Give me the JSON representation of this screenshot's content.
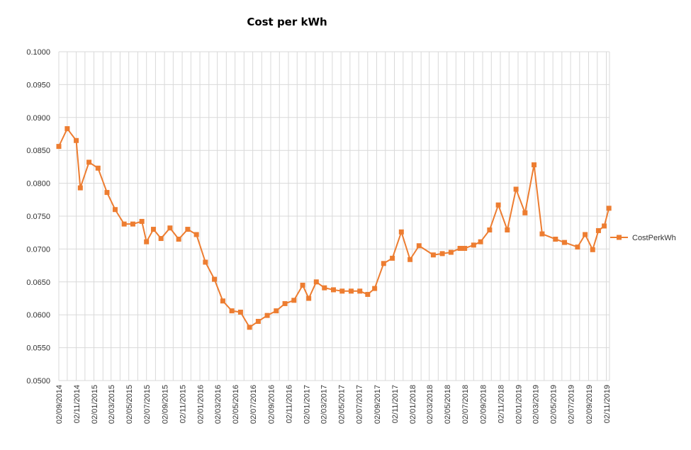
{
  "chart_data": {
    "type": "line",
    "title": "Cost per kWh",
    "xlabel": "",
    "ylabel": "",
    "ylim": [
      0.05,
      0.1
    ],
    "ytick_labels": [
      "0.0500",
      "0.0550",
      "0.0600",
      "0.0650",
      "0.0700",
      "0.0750",
      "0.0800",
      "0.0850",
      "0.0900",
      "0.0950",
      "0.1000"
    ],
    "xtick_labels": [
      "02/09/2014",
      "02/11/2014",
      "02/01/2015",
      "02/03/2015",
      "02/05/2015",
      "02/07/2015",
      "02/09/2015",
      "02/11/2015",
      "02/01/2016",
      "02/03/2016",
      "02/05/2016",
      "02/07/2016",
      "02/09/2016",
      "02/11/2016",
      "02/01/2017",
      "02/03/2017",
      "02/05/2017",
      "02/07/2017",
      "02/09/2017",
      "02/11/2017",
      "02/01/2018",
      "02/03/2018",
      "02/05/2018",
      "02/07/2018",
      "02/09/2018",
      "02/11/2018",
      "02/01/2019",
      "02/03/2019",
      "02/05/2019",
      "02/07/2019",
      "02/09/2019",
      "02/11/2019"
    ],
    "grid": true,
    "legend_position": "right",
    "series_color": "#ED7D31",
    "series": [
      {
        "name": "CostPerkWh",
        "points": [
          [
            "2014-09-02",
            0.0856
          ],
          [
            "2014-10-01",
            0.0883
          ],
          [
            "2014-11-01",
            0.0865
          ],
          [
            "2014-11-15",
            0.0793
          ],
          [
            "2014-12-15",
            0.0832
          ],
          [
            "2015-01-15",
            0.0823
          ],
          [
            "2015-02-15",
            0.0786
          ],
          [
            "2015-03-15",
            0.076
          ],
          [
            "2015-04-15",
            0.0738
          ],
          [
            "2015-05-15",
            0.0738
          ],
          [
            "2015-06-15",
            0.0742
          ],
          [
            "2015-07-01",
            0.0711
          ],
          [
            "2015-07-25",
            0.073
          ],
          [
            "2015-08-20",
            0.0716
          ],
          [
            "2015-09-20",
            0.0732
          ],
          [
            "2015-10-20",
            0.0715
          ],
          [
            "2015-11-20",
            0.073
          ],
          [
            "2015-12-20",
            0.0722
          ],
          [
            "2016-01-20",
            0.068
          ],
          [
            "2016-02-20",
            0.0654
          ],
          [
            "2016-03-20",
            0.0621
          ],
          [
            "2016-04-20",
            0.0606
          ],
          [
            "2016-05-20",
            0.0604
          ],
          [
            "2016-06-20",
            0.0581
          ],
          [
            "2016-07-20",
            0.059
          ],
          [
            "2016-08-20",
            0.0599
          ],
          [
            "2016-09-20",
            0.0606
          ],
          [
            "2016-10-20",
            0.0617
          ],
          [
            "2016-11-20",
            0.0622
          ],
          [
            "2016-12-20",
            0.0645
          ],
          [
            "2017-01-10",
            0.0625
          ],
          [
            "2017-02-05",
            0.065
          ],
          [
            "2017-03-05",
            0.0641
          ],
          [
            "2017-04-05",
            0.0638
          ],
          [
            "2017-05-05",
            0.0636
          ],
          [
            "2017-06-05",
            0.0636
          ],
          [
            "2017-07-05",
            0.0636
          ],
          [
            "2017-08-01",
            0.0631
          ],
          [
            "2017-08-25",
            0.064
          ],
          [
            "2017-09-25",
            0.0678
          ],
          [
            "2017-10-25",
            0.0686
          ],
          [
            "2017-11-25",
            0.0726
          ],
          [
            "2017-12-25",
            0.0684
          ],
          [
            "2018-01-25",
            0.0705
          ],
          [
            "2018-03-15",
            0.0691
          ],
          [
            "2018-04-15",
            0.0693
          ],
          [
            "2018-05-15",
            0.0695
          ],
          [
            "2018-06-15",
            0.0701
          ],
          [
            "2018-07-01",
            0.0701
          ],
          [
            "2018-08-01",
            0.0706
          ],
          [
            "2018-08-25",
            0.0711
          ],
          [
            "2018-09-25",
            0.0729
          ],
          [
            "2018-10-25",
            0.0767
          ],
          [
            "2018-11-25",
            0.0729
          ],
          [
            "2018-12-25",
            0.0791
          ],
          [
            "2019-01-25",
            0.0755
          ],
          [
            "2019-02-25",
            0.0828
          ],
          [
            "2019-03-25",
            0.0723
          ],
          [
            "2019-05-10",
            0.0715
          ],
          [
            "2019-06-10",
            0.071
          ],
          [
            "2019-07-25",
            0.0703
          ],
          [
            "2019-08-20",
            0.0722
          ],
          [
            "2019-09-15",
            0.0699
          ],
          [
            "2019-10-05",
            0.0728
          ],
          [
            "2019-10-25",
            0.0735
          ],
          [
            "2019-11-10",
            0.0762
          ]
        ]
      }
    ]
  }
}
